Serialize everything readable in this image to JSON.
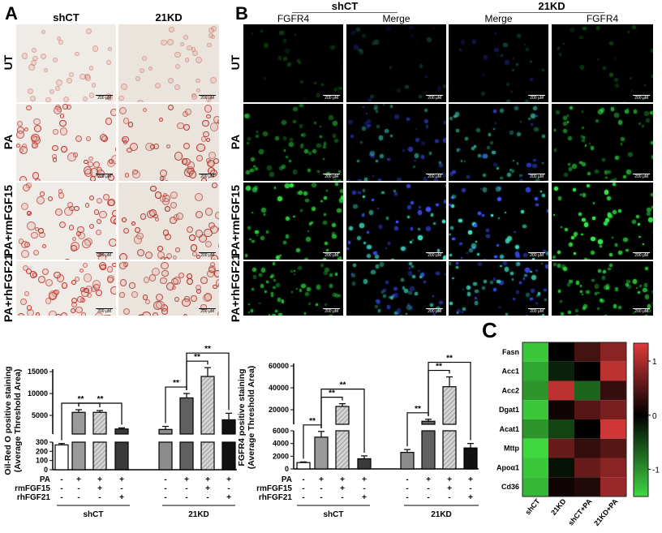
{
  "panel_labels": {
    "a": "A",
    "b": "B",
    "c": "C"
  },
  "panel_a": {
    "columns": [
      "shCT",
      "21KD"
    ],
    "rows": [
      "UT",
      "PA",
      "PA+rmFGF15",
      "PA+rhFGF21"
    ],
    "scale_bar": "200 μM"
  },
  "panel_b": {
    "groups": [
      "shCT",
      "21KD"
    ],
    "columns": [
      "FGFR4",
      "Merge",
      "Merge",
      "FGFR4"
    ],
    "rows": [
      "UT",
      "PA",
      "PA+rmFGF15",
      "PA+rhFGF21"
    ],
    "scale_bar": "200 μM"
  },
  "chart_data": [
    {
      "type": "bar",
      "ylabel": "Oil-Red O positive staining\n(Average Threshold Area)",
      "ylabel_lines": [
        "Oil-Red O positive staining",
        "(Average Threshold Area)"
      ],
      "axis_break": true,
      "lower_ticks": [
        0,
        100,
        200,
        300
      ],
      "upper_ticks": [
        5000,
        10000,
        15000
      ],
      "groups": [
        "shCT",
        "21KD"
      ],
      "treatments": {
        "labels": [
          "PA",
          "rmFGF15",
          "rhFGF21"
        ],
        "signs": [
          [
            "-",
            "+",
            "+",
            "+",
            "-",
            "+",
            "+",
            "+"
          ],
          [
            "-",
            "-",
            "+",
            "-",
            "-",
            "-",
            "+",
            "-"
          ],
          [
            "-",
            "-",
            "-",
            "+",
            "-",
            "-",
            "-",
            "+"
          ]
        ]
      },
      "values": [
        270,
        5700,
        5700,
        1900,
        1800,
        9000,
        13900,
        4000
      ],
      "errors": [
        15,
        600,
        400,
        250,
        700,
        1000,
        2000,
        1500
      ],
      "annotations": [
        {
          "from": 0,
          "to": [
            1,
            2
          ],
          "label": "**"
        },
        {
          "from": 1,
          "to": [
            3
          ],
          "label": "**"
        },
        {
          "from": 4,
          "to": [
            5
          ],
          "label": "**"
        },
        {
          "from": 5,
          "to": [
            6
          ],
          "label": "**"
        },
        {
          "from": 5,
          "to": [
            7
          ],
          "label": "**"
        }
      ]
    },
    {
      "type": "bar",
      "ylabel_lines": [
        "FGFR4 positive staining",
        "(Average Threshold Area)"
      ],
      "axis_break": true,
      "lower_ticks": [
        0,
        2000,
        4000,
        6000
      ],
      "upper_ticks": [
        20000,
        40000,
        60000
      ],
      "groups": [
        "shCT",
        "21KD"
      ],
      "treatments": {
        "labels": [
          "PA",
          "rmFGF15",
          "rhFGF21"
        ],
        "signs": [
          [
            "-",
            "+",
            "+",
            "+",
            "-",
            "+",
            "+",
            "+"
          ],
          [
            "-",
            "-",
            "+",
            "-",
            "-",
            "-",
            "+",
            "-"
          ],
          [
            "-",
            "-",
            "-",
            "+",
            "-",
            "-",
            "-",
            "+"
          ]
        ]
      },
      "values": [
        1000,
        5000,
        23000,
        1600,
        2600,
        9500,
        41000,
        3300
      ],
      "errors": [
        100,
        900,
        2500,
        450,
        450,
        1800,
        9000,
        700
      ],
      "annotations": [
        {
          "from": 0,
          "to": [
            1
          ],
          "label": "**"
        },
        {
          "from": 1,
          "to": [
            2
          ],
          "label": "**"
        },
        {
          "from": 1,
          "to": [
            3
          ],
          "label": "**"
        },
        {
          "from": 4,
          "to": [
            5
          ],
          "label": "**"
        },
        {
          "from": 5,
          "to": [
            6
          ],
          "label": "**"
        },
        {
          "from": 5,
          "to": [
            7
          ],
          "label": "**"
        }
      ]
    },
    {
      "type": "heatmap",
      "rows": [
        "Fasn",
        "Acc1",
        "Acc2",
        "Dgat1",
        "Acat1",
        "Mttp",
        "Apoα1",
        "Cd36"
      ],
      "columns": [
        "shCT",
        "21KD",
        "shCT+PA",
        "21KD+PA"
      ],
      "values": [
        [
          -1.2,
          0,
          0.4,
          0.8
        ],
        [
          -1.0,
          -0.2,
          0,
          1.1
        ],
        [
          -0.9,
          1.1,
          -0.6,
          0.3
        ],
        [
          -1.2,
          0.1,
          0.5,
          0.7
        ],
        [
          -0.9,
          -0.4,
          0,
          1.2
        ],
        [
          -1.3,
          0.6,
          0.3,
          0.5
        ],
        [
          -1.2,
          -0.1,
          0.6,
          0.8
        ],
        [
          -1.1,
          0.1,
          0.2,
          0.9
        ]
      ],
      "colorbar_ticks": [
        1,
        0,
        -1
      ],
      "range": [
        -1.5,
        1.33
      ],
      "colors": {
        "low": "#3fd93f",
        "mid": "#000000",
        "high": "#e03a3a"
      }
    }
  ]
}
